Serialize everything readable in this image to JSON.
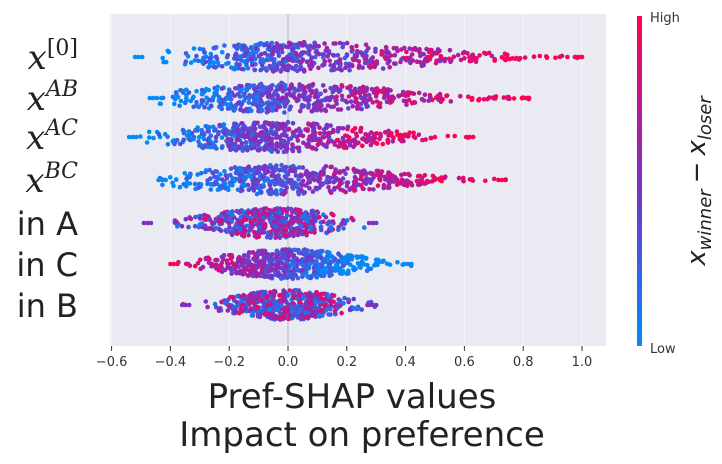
{
  "chart_data": {
    "type": "scatter",
    "subtype": "beeswarm",
    "title": "",
    "xlabel_line1": "Pref-SHAP values",
    "xlabel_line2": "Impact on preference",
    "xlim": [
      -0.6,
      1.07
    ],
    "xticks": [
      -0.6,
      -0.4,
      -0.2,
      0.0,
      0.2,
      0.4,
      0.6,
      0.8,
      1.0
    ],
    "xtick_labels": [
      "−0.6",
      "−0.4",
      "−0.2",
      "0.0",
      "0.2",
      "0.4",
      "0.6",
      "0.8",
      "1.0"
    ],
    "zero_line": 0.0,
    "features": [
      {
        "label": "x",
        "sup": "[0]",
        "italic": true,
        "min": -0.52,
        "max": 1.0,
        "peak": 0.05,
        "skew": 0.6,
        "color_trend": "positive"
      },
      {
        "label": "x",
        "sup": "AB",
        "italic": true,
        "min": -0.47,
        "max": 0.82,
        "peak": 0.0,
        "skew": 0.5,
        "color_trend": "positive"
      },
      {
        "label": "x",
        "sup": "AC",
        "italic": true,
        "min": -0.54,
        "max": 0.63,
        "peak": -0.05,
        "skew": 0.3,
        "color_trend": "positive"
      },
      {
        "label": "x",
        "sup": "BC",
        "italic": true,
        "min": -0.44,
        "max": 0.74,
        "peak": 0.0,
        "skew": 0.4,
        "color_trend": "positive"
      },
      {
        "label": "in A",
        "sup": "",
        "italic": false,
        "min": -0.49,
        "max": 0.3,
        "peak": -0.05,
        "skew": -0.2,
        "color_trend": "mixed"
      },
      {
        "label": "in C",
        "sup": "",
        "italic": false,
        "min": -0.4,
        "max": 0.42,
        "peak": 0.0,
        "skew": 0.1,
        "color_trend": "negative"
      },
      {
        "label": "in B",
        "sup": "",
        "italic": false,
        "min": -0.36,
        "max": 0.3,
        "peak": 0.0,
        "skew": 0.0,
        "color_trend": "mixed"
      }
    ],
    "colorbar": {
      "high_label": "High",
      "low_label": "Low",
      "title_main": "x",
      "title_sub1": "winner",
      "title_minus": "−",
      "title_sub2": "loser",
      "high_color": "#ff0052",
      "mid_color": "#7d2fc4",
      "low_color": "#008bfb"
    },
    "background_color": "#eaeaf2"
  }
}
